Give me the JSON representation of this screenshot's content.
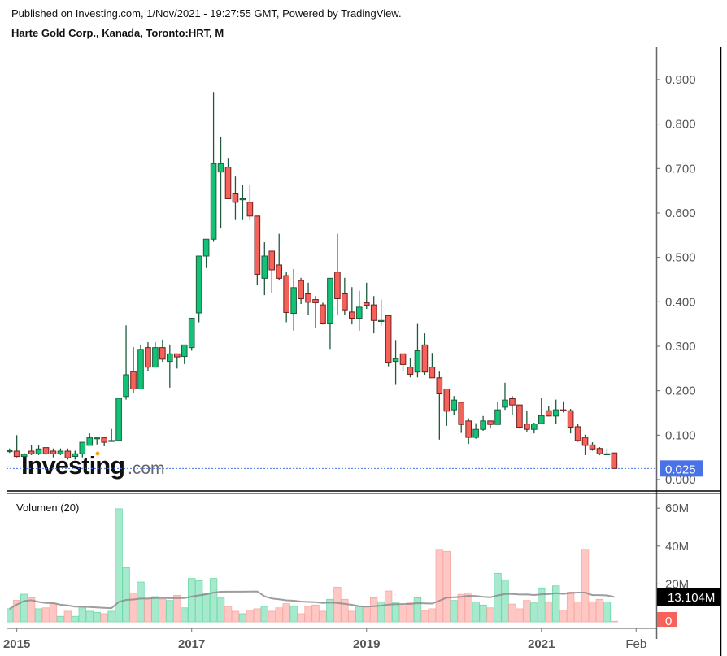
{
  "header": {
    "published": "Published on Investing.com, 1/Nov/2021 - 19:27:55 GMT, Powered by TradingView.",
    "title": "Harte Gold Corp., Kanada, Toronto:HRT, M"
  },
  "watermark": {
    "brand": "Investing",
    "suffix": ".com"
  },
  "chart_data": [
    {
      "type": "candlestick",
      "interval": "monthly",
      "start_month": "2014-12",
      "end_month": "2021-11",
      "ohlc_fields": [
        "open",
        "high",
        "low",
        "close"
      ],
      "ohlc": [
        [
          0.065,
          0.07,
          0.06,
          0.065
        ],
        [
          0.064,
          0.1,
          0.05,
          0.052
        ],
        [
          0.052,
          0.06,
          0.05,
          0.057
        ],
        [
          0.064,
          0.077,
          0.055,
          0.058
        ],
        [
          0.058,
          0.077,
          0.055,
          0.069
        ],
        [
          0.072,
          0.072,
          0.055,
          0.058
        ],
        [
          0.064,
          0.07,
          0.05,
          0.058
        ],
        [
          0.058,
          0.07,
          0.055,
          0.064
        ],
        [
          0.064,
          0.07,
          0.045,
          0.049
        ],
        [
          0.052,
          0.065,
          0.045,
          0.058
        ],
        [
          0.058,
          0.084,
          0.05,
          0.084
        ],
        [
          0.077,
          0.104,
          0.077,
          0.094
        ],
        [
          0.094,
          0.094,
          0.079,
          0.094
        ],
        [
          0.094,
          0.094,
          0.075,
          0.084
        ],
        [
          0.088,
          0.114,
          0.088,
          0.088
        ],
        [
          0.088,
          0.183,
          0.088,
          0.183
        ],
        [
          0.187,
          0.347,
          0.18,
          0.236
        ],
        [
          0.243,
          0.298,
          0.195,
          0.204
        ],
        [
          0.204,
          0.304,
          0.204,
          0.293
        ],
        [
          0.297,
          0.309,
          0.244,
          0.253
        ],
        [
          0.253,
          0.309,
          0.253,
          0.297
        ],
        [
          0.297,
          0.315,
          0.265,
          0.271
        ],
        [
          0.266,
          0.304,
          0.207,
          0.283
        ],
        [
          0.283,
          0.283,
          0.25,
          0.276
        ],
        [
          0.277,
          0.303,
          0.26,
          0.303
        ],
        [
          0.297,
          0.363,
          0.29,
          0.363
        ],
        [
          0.375,
          0.503,
          0.354,
          0.503
        ],
        [
          0.503,
          0.541,
          0.476,
          0.541
        ],
        [
          0.541,
          0.872,
          0.535,
          0.711
        ],
        [
          0.692,
          0.772,
          0.565,
          0.711
        ],
        [
          0.703,
          0.724,
          0.632,
          0.632
        ],
        [
          0.643,
          0.682,
          0.584,
          0.624
        ],
        [
          0.632,
          0.663,
          0.584,
          0.632
        ],
        [
          0.624,
          0.663,
          0.584,
          0.593
        ],
        [
          0.593,
          0.593,
          0.439,
          0.462
        ],
        [
          0.453,
          0.534,
          0.415,
          0.503
        ],
        [
          0.514,
          0.514,
          0.419,
          0.472
        ],
        [
          0.483,
          0.553,
          0.45,
          0.453
        ],
        [
          0.459,
          0.468,
          0.354,
          0.376
        ],
        [
          0.374,
          0.474,
          0.335,
          0.432
        ],
        [
          0.448,
          0.454,
          0.395,
          0.407
        ],
        [
          0.418,
          0.443,
          0.371,
          0.399
        ],
        [
          0.405,
          0.413,
          0.34,
          0.398
        ],
        [
          0.393,
          0.398,
          0.349,
          0.352
        ],
        [
          0.352,
          0.453,
          0.294,
          0.453
        ],
        [
          0.467,
          0.553,
          0.371,
          0.407
        ],
        [
          0.418,
          0.454,
          0.371,
          0.382
        ],
        [
          0.377,
          0.433,
          0.349,
          0.363
        ],
        [
          0.363,
          0.425,
          0.335,
          0.388
        ],
        [
          0.398,
          0.443,
          0.384,
          0.392
        ],
        [
          0.393,
          0.413,
          0.329,
          0.358
        ],
        [
          0.358,
          0.405,
          0.346,
          0.358
        ],
        [
          0.369,
          0.369,
          0.255,
          0.264
        ],
        [
          0.266,
          0.314,
          0.213,
          0.272
        ],
        [
          0.283,
          0.283,
          0.244,
          0.259
        ],
        [
          0.253,
          0.273,
          0.23,
          0.237
        ],
        [
          0.242,
          0.352,
          0.23,
          0.29
        ],
        [
          0.303,
          0.329,
          0.236,
          0.242
        ],
        [
          0.253,
          0.285,
          0.229,
          0.229
        ],
        [
          0.229,
          0.243,
          0.09,
          0.193
        ],
        [
          0.204,
          0.204,
          0.121,
          0.154
        ],
        [
          0.157,
          0.188,
          0.146,
          0.179
        ],
        [
          0.174,
          0.174,
          0.105,
          0.124
        ],
        [
          0.132,
          0.138,
          0.08,
          0.095
        ],
        [
          0.095,
          0.127,
          0.092,
          0.113
        ],
        [
          0.113,
          0.143,
          0.11,
          0.132
        ],
        [
          0.132,
          0.132,
          0.116,
          0.124
        ],
        [
          0.124,
          0.175,
          0.124,
          0.157
        ],
        [
          0.163,
          0.218,
          0.157,
          0.179
        ],
        [
          0.182,
          0.188,
          0.145,
          0.168
        ],
        [
          0.168,
          0.168,
          0.115,
          0.118
        ],
        [
          0.125,
          0.155,
          0.108,
          0.113
        ],
        [
          0.113,
          0.128,
          0.104,
          0.125
        ],
        [
          0.126,
          0.183,
          0.126,
          0.144
        ],
        [
          0.155,
          0.165,
          0.143,
          0.143
        ],
        [
          0.143,
          0.18,
          0.125,
          0.157
        ],
        [
          0.157,
          0.176,
          0.151,
          0.155
        ],
        [
          0.155,
          0.159,
          0.104,
          0.118
        ],
        [
          0.119,
          0.125,
          0.085,
          0.088
        ],
        [
          0.095,
          0.101,
          0.055,
          0.077
        ],
        [
          0.078,
          0.084,
          0.065,
          0.069
        ],
        [
          0.07,
          0.073,
          0.055,
          0.058
        ],
        [
          0.058,
          0.07,
          0.055,
          0.058
        ],
        [
          0.06,
          0.06,
          0.025,
          0.025
        ]
      ],
      "ylim": [
        0,
        0.96
      ],
      "y_ticks": [
        "0.000",
        "0.100",
        "0.200",
        "0.300",
        "0.400",
        "0.500",
        "0.600",
        "0.700",
        "0.800",
        "0.900"
      ],
      "y_tick_values": [
        0,
        0.1,
        0.2,
        0.3,
        0.4,
        0.5,
        0.6,
        0.7,
        0.8,
        0.9
      ],
      "last_price_label": "0.025",
      "last_price": 0.025,
      "x_ticks": [
        "2015",
        "2017",
        "2019",
        "2021",
        "Feb"
      ],
      "x_tick_months": [
        "2015-01",
        "2017-01",
        "2019-01",
        "2021-01",
        "2022-02"
      ],
      "colors": {
        "up": "#12c277",
        "down": "#f5625a",
        "up_border": "#1b5e3d",
        "down_border": "#6e1e1e",
        "wick": "#1e5a3c",
        "last_price": "#4a72e8"
      }
    },
    {
      "type": "bar",
      "title": "Volumen (20)",
      "unit": "M",
      "values": [
        6.9,
        11.4,
        14.6,
        12.7,
        6.9,
        7.4,
        9.6,
        2.9,
        5.6,
        2.9,
        7.4,
        5.6,
        5.0,
        4.3,
        5.6,
        59.7,
        28.6,
        15.3,
        21.0,
        12.4,
        13.3,
        12.0,
        11.3,
        14.0,
        7.4,
        22.9,
        21.7,
        15.0,
        22.9,
        12.6,
        8.2,
        5.6,
        4.3,
        6.1,
        6.9,
        8.2,
        5.6,
        7.4,
        9.6,
        8.2,
        4.3,
        8.2,
        8.9,
        5.6,
        11.9,
        18.3,
        11.9,
        5.6,
        8.2,
        8.2,
        12.7,
        10.6,
        16.3,
        10.0,
        8.6,
        10.0,
        12.7,
        6.0,
        6.9,
        38.3,
        37.2,
        11.3,
        14.5,
        15.3,
        10.6,
        8.9,
        7.4,
        25.6,
        22.2,
        9.4,
        6.9,
        11.3,
        10.0,
        17.9,
        10.6,
        19.0,
        6.1,
        15.7,
        10.6,
        38.3,
        10.6,
        11.9,
        10.6,
        0.3
      ],
      "ma_period": 20,
      "ylim": [
        0,
        65
      ],
      "y_ticks": [
        "60M",
        "40M",
        "20M"
      ],
      "y_tick_values": [
        60,
        40,
        20
      ],
      "ma_label": "13.104M",
      "last_volume_label": "0",
      "colors": {
        "up": "#a6e9cc",
        "down": "#ffc7c3",
        "up_border": "#6ddaa9",
        "down_border": "#f9a9a3",
        "ma": "#8c8c8c",
        "ma_label_bg": "#000000",
        "last_volume_bg": "#f7625a"
      }
    }
  ]
}
